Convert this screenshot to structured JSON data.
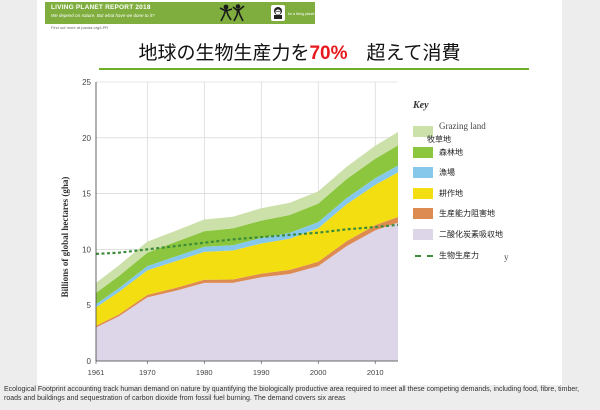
{
  "banner": {
    "line1": "LIVING PLANET REPORT 2018",
    "line2": "We depend on nature. But what have we done to it?",
    "find_more": "Find out more at panda.org/LPR",
    "wwf_label": "WWF",
    "wwf_sub": "for a living planet"
  },
  "slide_title": {
    "prefix": "地球の生物生産力を",
    "highlight": "70%",
    "suffix": "　超えて消費"
  },
  "colors": {
    "grazing": "#cce0aa",
    "forest": "#8cc63e",
    "fishing": "#86c8ec",
    "cropland": "#f3de12",
    "built_up": "#de8b52",
    "carbon": "#dcd6e8",
    "biocapacity": "#3c8c3a",
    "accent": "#e8191e",
    "banner": "#7fae3e"
  },
  "chart_data": {
    "type": "area",
    "stacked": true,
    "x": [
      1961,
      1965,
      1970,
      1975,
      1980,
      1985,
      1990,
      1995,
      2000,
      2005,
      2010,
      2014
    ],
    "ylabel": "Billions of global hectares (gha)",
    "xlabel": "",
    "ylim": [
      0,
      25
    ],
    "xlim": [
      1961,
      2014
    ],
    "yticks": [
      0,
      5,
      10,
      15,
      20,
      25
    ],
    "xticks": [
      1961,
      1970,
      1980,
      1990,
      2000,
      2010
    ],
    "grid": true,
    "legend_title": "Key",
    "legend_position": "right",
    "series": [
      {
        "name": "二酸化炭素吸収地",
        "color_key": "carbon",
        "values": [
          3.0,
          4.0,
          5.7,
          6.3,
          7.0,
          7.0,
          7.5,
          7.8,
          8.5,
          10.3,
          11.7,
          12.4
        ]
      },
      {
        "name": "生産能力阻害地",
        "color_key": "built_up",
        "values": [
          0.15,
          0.18,
          0.22,
          0.25,
          0.28,
          0.3,
          0.33,
          0.36,
          0.4,
          0.44,
          0.48,
          0.5
        ]
      },
      {
        "name": "耕作地",
        "color_key": "cropland",
        "values": [
          1.65,
          2.0,
          2.2,
          2.4,
          2.5,
          2.6,
          2.7,
          2.8,
          3.0,
          3.3,
          3.6,
          4.0
        ]
      },
      {
        "name": "漁場",
        "color_key": "fishing",
        "values": [
          0.3,
          0.33,
          0.38,
          0.42,
          0.45,
          0.48,
          0.5,
          0.52,
          0.55,
          0.57,
          0.6,
          0.62
        ]
      },
      {
        "name": "森林地",
        "color_key": "forest",
        "values": [
          1.0,
          1.1,
          1.2,
          1.3,
          1.4,
          1.5,
          1.55,
          1.6,
          1.65,
          1.7,
          1.75,
          1.8
        ]
      },
      {
        "name": "牧草地",
        "label_en": "Grazing land",
        "color_key": "grazing",
        "values": [
          0.9,
          0.95,
          1.0,
          1.0,
          1.05,
          1.05,
          1.1,
          1.1,
          1.1,
          1.1,
          1.15,
          1.2
        ]
      }
    ],
    "lines": [
      {
        "name": "生物生産力",
        "color_key": "biocapacity",
        "style": "dashed",
        "values": [
          9.6,
          9.7,
          10.0,
          10.3,
          10.6,
          10.9,
          11.1,
          11.3,
          11.5,
          11.8,
          12.0,
          12.2
        ]
      }
    ],
    "legend_extra_label": "y"
  },
  "caption": "Ecological Footprint accounting track human demand on nature by quantifying the biologically productive area required to meet all these competing demands, including food, fibre, timber, roads and buildings and sequestration of carbon dioxide from fossil fuel burning. The demand covers six areas"
}
